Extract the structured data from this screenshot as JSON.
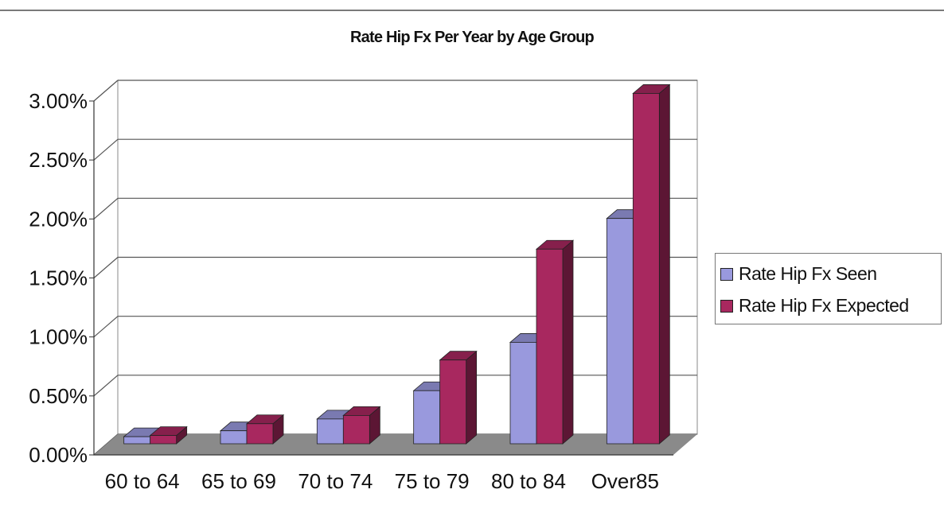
{
  "chart_data": {
    "type": "bar",
    "title": "Rate Hip Fx Per Year by Age Group",
    "categories": [
      "60 to 64",
      "65 to 69",
      "70 to 74",
      "75 to 79",
      "80 to 84",
      "Over85"
    ],
    "series": [
      {
        "name": "Rate Hip Fx Seen",
        "values": [
          0.0006,
          0.0011,
          0.0021,
          0.0045,
          0.0086,
          0.0191
        ],
        "color": "#9999dd"
      },
      {
        "name": "Rate Hip Fx Expected",
        "values": [
          0.0007,
          0.0017,
          0.0024,
          0.0071,
          0.0165,
          0.0297
        ],
        "color": "#a8285f"
      }
    ],
    "yticks": [
      "0.00%",
      "0.50%",
      "1.00%",
      "1.50%",
      "2.00%",
      "2.50%",
      "3.00%"
    ],
    "ylim": [
      0,
      0.03
    ],
    "grid": true,
    "legend_position": "right",
    "style": "3d-column"
  }
}
